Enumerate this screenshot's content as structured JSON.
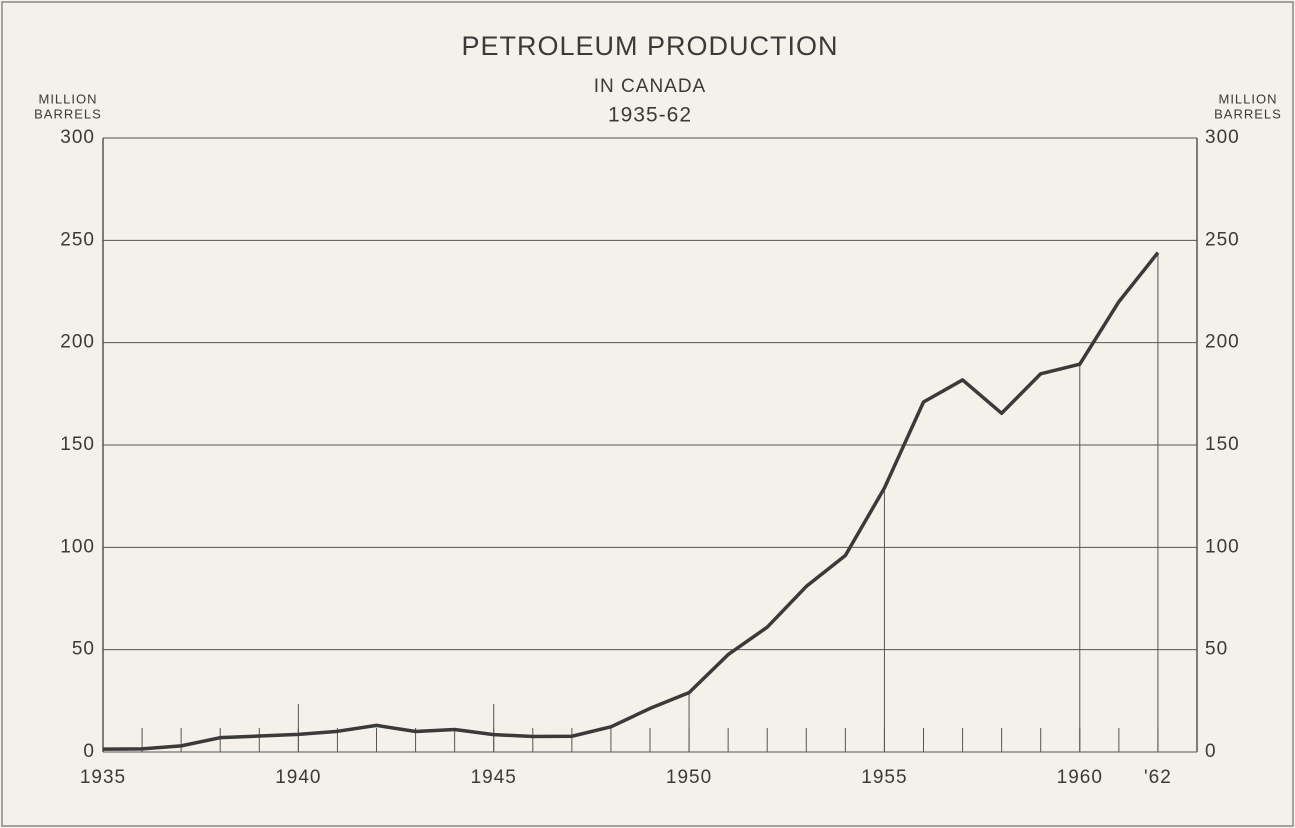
{
  "chart_data": {
    "type": "line",
    "title": "PETROLEUM PRODUCTION",
    "subtitle": "IN CANADA",
    "period": "1935-62",
    "y_label": [
      "MILLION",
      "BARRELS"
    ],
    "y2_label": [
      "MILLION",
      "BARRELS"
    ],
    "x": [
      1935,
      1936,
      1937,
      1938,
      1939,
      1940,
      1941,
      1942,
      1943,
      1944,
      1945,
      1946,
      1947,
      1948,
      1949,
      1950,
      1951,
      1952,
      1953,
      1954,
      1955,
      1956,
      1957,
      1958,
      1959,
      1960,
      1961,
      1962
    ],
    "series": [
      {
        "name": "Petroleum production",
        "color": "#3a3a3a",
        "values": [
          1.4,
          1.5,
          3,
          7,
          7.8,
          8.6,
          10.1,
          13,
          10,
          11,
          8.5,
          7.6,
          7.7,
          12.3,
          21.3,
          29,
          47.6,
          61,
          80.9,
          96,
          129,
          171,
          181.8,
          165.5,
          184.8,
          189.5,
          220,
          244
        ]
      }
    ],
    "xlim": [
      1935,
      1963
    ],
    "xticks": [
      1935,
      1940,
      1945,
      1950,
      1955,
      1960,
      {
        "value": 1962,
        "label": "'62"
      }
    ],
    "ylim": [
      0,
      300
    ],
    "yticks": [
      0,
      50,
      100,
      150,
      200,
      250,
      300
    ],
    "y2lim": [
      0,
      300
    ],
    "y2ticks": [
      0,
      50,
      100,
      150,
      200,
      250,
      300
    ],
    "grid": true
  }
}
